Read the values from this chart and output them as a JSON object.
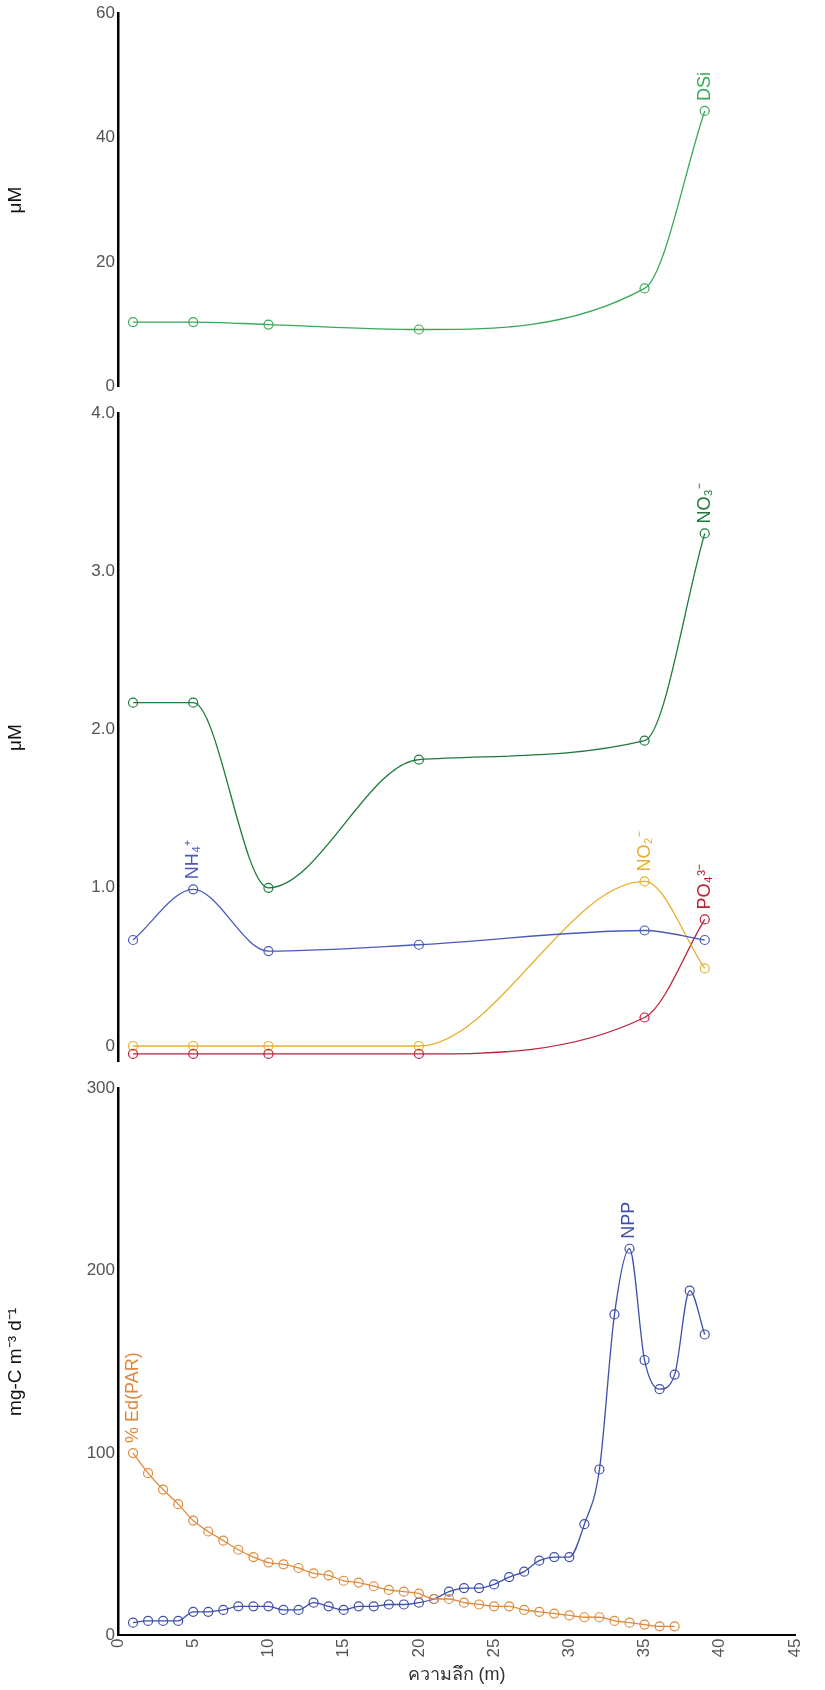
{
  "chart_data": [
    {
      "type": "line",
      "ylabel": "μM",
      "xlim": [
        0,
        45
      ],
      "ylim": [
        0,
        60
      ],
      "yticks": [
        0,
        20,
        40,
        60
      ],
      "tick_labels": "y",
      "grid": false,
      "legend": false,
      "marker": "circle",
      "series": [
        {
          "name": "DSi",
          "color": "#3aa85a",
          "x": [
            1,
            5,
            10,
            20,
            35,
            39
          ],
          "values": [
            10.4,
            10.4,
            10.0,
            9.2,
            15.8,
            44.3
          ]
        }
      ]
    },
    {
      "type": "line",
      "ylabel": "μM",
      "xlim": [
        0,
        45
      ],
      "ylim": [
        -0.1,
        4.0
      ],
      "yticks": [
        {
          "value": 0,
          "label": "0"
        },
        {
          "value": 1,
          "label": "1.0"
        },
        {
          "value": 2,
          "label": "2.0"
        },
        {
          "value": 3,
          "label": "3.0"
        },
        {
          "value": 4,
          "label": "4.0"
        }
      ],
      "tick_labels": "y",
      "grid": false,
      "legend": false,
      "marker": "circle",
      "series": [
        {
          "name": "NO₃⁻",
          "color": "#1e7a3c",
          "x": [
            1,
            5,
            10,
            20,
            35,
            39
          ],
          "values": [
            2.17,
            2.17,
            1.0,
            1.81,
            1.93,
            3.24
          ]
        },
        {
          "name": "NH₄⁺",
          "color": "#4a5ab8",
          "x": [
            1,
            5,
            10,
            20,
            35,
            39
          ],
          "values": [
            0.67,
            0.99,
            0.6,
            0.64,
            0.73,
            0.67
          ]
        },
        {
          "name": "NO₂⁻",
          "color": "#e8b030",
          "x": [
            1,
            5,
            10,
            20,
            35,
            39
          ],
          "values": [
            0.0,
            0.0,
            0.0,
            0.0,
            1.04,
            0.49
          ]
        },
        {
          "name": "PO₄³⁻",
          "color": "#c0203a",
          "x": [
            1,
            5,
            10,
            20,
            35,
            39
          ],
          "values": [
            -0.05,
            -0.05,
            -0.05,
            -0.05,
            0.18,
            0.8
          ]
        }
      ]
    },
    {
      "type": "line",
      "xlabel": "ความลึก (m)",
      "ylabel": "mg-C m⁻³ d⁻¹",
      "xlim": [
        0,
        45
      ],
      "xticks": [
        0,
        5,
        10,
        15,
        20,
        25,
        30,
        35,
        40,
        45
      ],
      "ylim": [
        0,
        300
      ],
      "yticks": [
        0,
        100,
        200,
        300
      ],
      "grid": false,
      "legend": false,
      "marker": "circle",
      "series": [
        {
          "name": "% Ed(PAR)",
          "color": "#e08a3c",
          "x": [
            1,
            2,
            3,
            4,
            5,
            6,
            7,
            8,
            9,
            10,
            11,
            12,
            13,
            14,
            15,
            16,
            17,
            18,
            19,
            20,
            21,
            22,
            23,
            24,
            25,
            26,
            27,
            28,
            29,
            30,
            31,
            32,
            33,
            34,
            35,
            36,
            37
          ],
          "values": [
            100,
            89,
            80,
            72,
            63,
            57,
            52,
            47,
            43,
            40,
            39,
            37,
            34,
            33,
            30,
            29,
            27,
            25,
            24,
            23,
            20,
            20,
            18,
            17,
            16,
            16,
            14,
            13,
            12,
            11,
            10,
            10,
            8,
            7,
            6,
            5,
            5
          ]
        },
        {
          "name": "NPP",
          "color": "#3d4fa8",
          "x": [
            1,
            2,
            3,
            4,
            5,
            6,
            7,
            8,
            9,
            10,
            11,
            12,
            13,
            14,
            15,
            16,
            17,
            18,
            19,
            20,
            21,
            22,
            23,
            24,
            25,
            26,
            27,
            28,
            29,
            30,
            31,
            32,
            33,
            34,
            35,
            36,
            37,
            38,
            39
          ],
          "values": [
            7,
            8,
            8,
            8,
            13,
            13,
            14,
            16,
            16,
            16,
            14,
            14,
            18,
            16,
            14,
            16,
            16,
            17,
            17,
            18,
            20,
            24,
            26,
            26,
            28,
            32,
            35,
            41,
            43,
            43,
            61,
            91,
            176,
            212,
            151,
            135,
            143,
            189,
            165
          ]
        }
      ]
    }
  ]
}
